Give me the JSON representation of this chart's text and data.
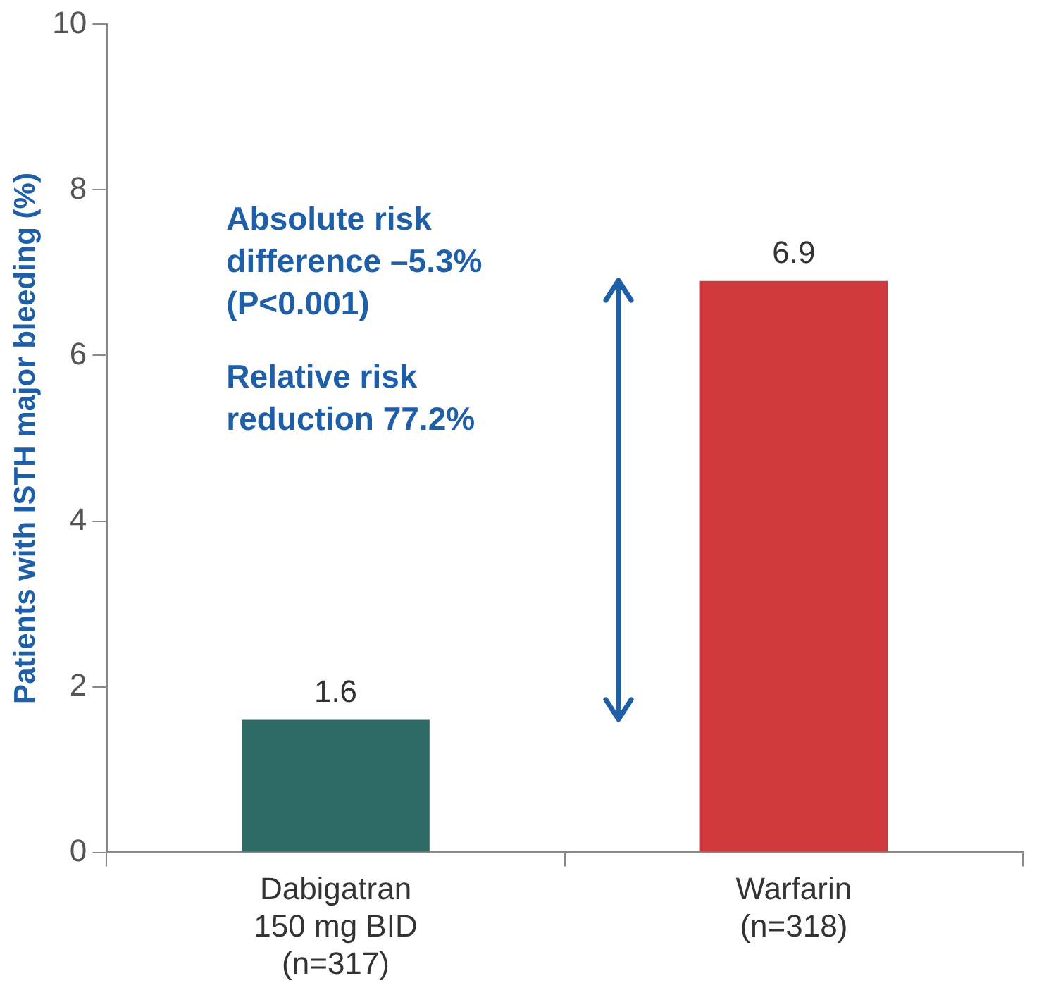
{
  "chart_data": {
    "type": "bar",
    "ylabel": "Patients with ISTH major bleeding (%)",
    "categories": [
      "Dabigatran 150 mg BID (n=317)",
      "Warfarin (n=318)"
    ],
    "values": [
      1.6,
      6.9
    ],
    "colors": [
      "#2e6b66",
      "#d0393b"
    ],
    "ylim": [
      0,
      10
    ],
    "yticks": [
      0,
      2,
      4,
      6,
      8,
      10
    ],
    "grid": false,
    "data_labels": true,
    "annotations": [
      "Absolute risk difference –5.3% (P<0.001)",
      "Relative risk reduction 77.2%"
    ]
  }
}
